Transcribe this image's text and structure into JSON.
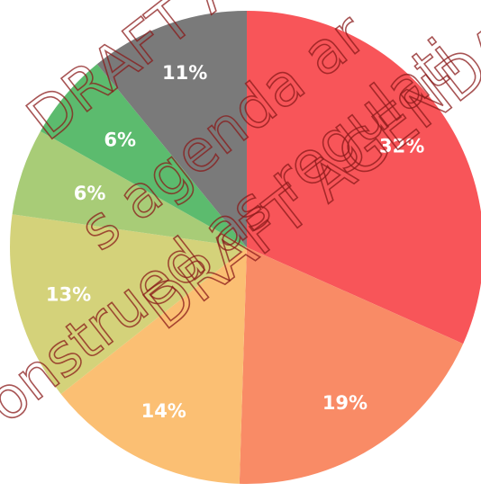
{
  "chart_data": {
    "type": "pie",
    "categories": [
      null,
      null,
      null,
      null,
      null,
      null,
      null
    ],
    "values": [
      32,
      19,
      14,
      13,
      6,
      6,
      11
    ],
    "value_labels": [
      "32%",
      "19%",
      "14%",
      "13%",
      "6%",
      "6%",
      "11%"
    ],
    "colors": [
      "#f85559",
      "#f98b66",
      "#fbbf73",
      "#d4d27a",
      "#a8cc77",
      "#5cbb6e",
      "#7a7a7a"
    ],
    "watermarks": [
      "DRAFT A",
      "s agenda ar",
      "onstrued as regulati",
      "DRAFT AGENDA"
    ]
  }
}
